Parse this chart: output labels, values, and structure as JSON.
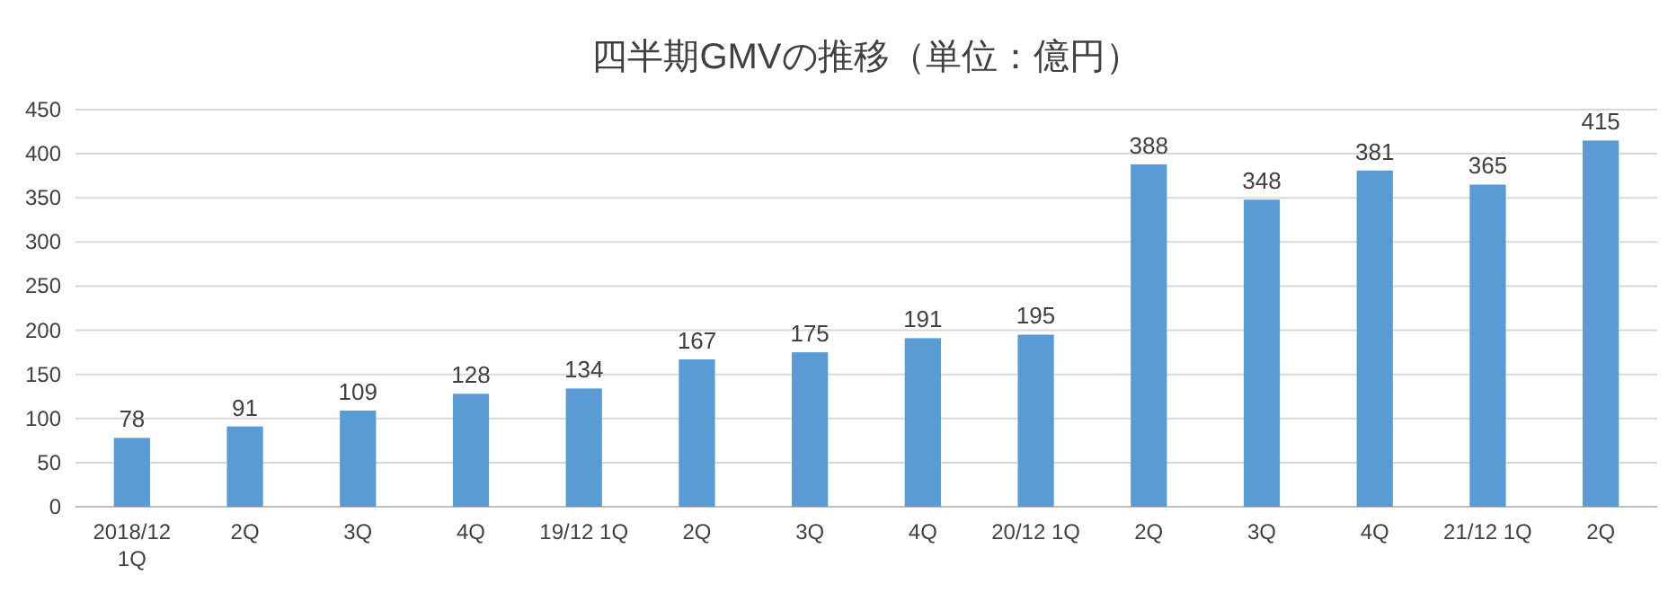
{
  "chart_data": {
    "type": "bar",
    "title": "四半期GMVの推移（単位：億円）",
    "categories": [
      "2018/12 1Q",
      "2Q",
      "3Q",
      "4Q",
      "19/12 1Q",
      "2Q",
      "3Q",
      "4Q",
      "20/12 1Q",
      "2Q",
      "3Q",
      "4Q",
      "21/12 1Q",
      "2Q"
    ],
    "values": [
      78,
      91,
      109,
      128,
      134,
      167,
      175,
      191,
      195,
      388,
      348,
      381,
      365,
      415
    ],
    "color": "#5b9bd5",
    "ylim": [
      0,
      450
    ],
    "yticks": [
      0,
      50,
      100,
      150,
      200,
      250,
      300,
      350,
      400,
      450
    ],
    "grid": "y",
    "data_labels": true
  }
}
